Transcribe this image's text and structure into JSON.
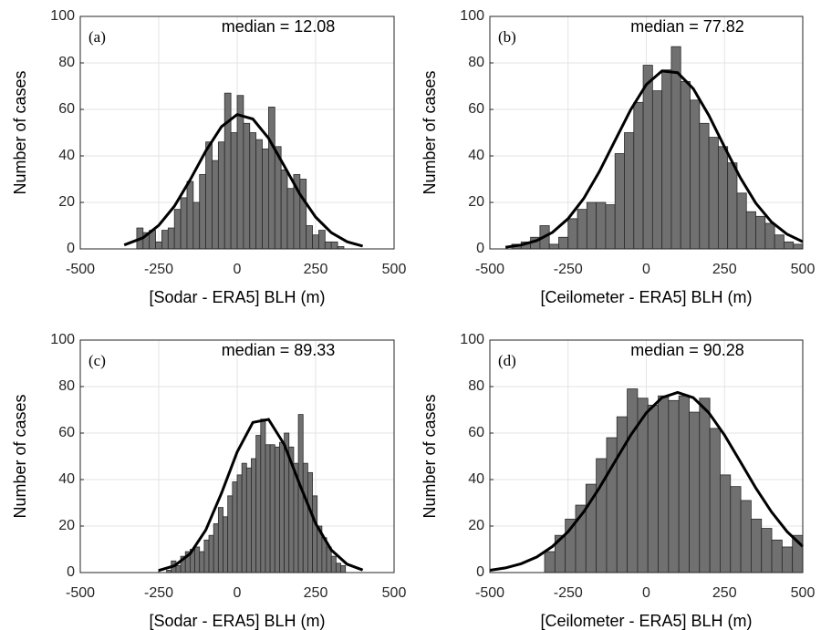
{
  "chart_data": [
    {
      "type": "histogram",
      "panel_label": "(a)",
      "annotation": "median = 12.08",
      "xlabel": "[Sodar - ERA5] BLH (m)",
      "ylabel": "Number of cases",
      "bins": [
        -320,
        -300,
        -280,
        -260,
        -240,
        -220,
        -200,
        -180,
        -160,
        -140,
        -120,
        -100,
        -80,
        -60,
        -40,
        -20,
        0,
        20,
        40,
        60,
        80,
        100,
        120,
        140,
        160,
        180,
        200,
        220,
        240,
        260,
        280,
        300,
        320,
        340
      ],
      "values": [
        9,
        7,
        8,
        3,
        8,
        9,
        17,
        22,
        29,
        20,
        32,
        46,
        38,
        46,
        67,
        50,
        66,
        54,
        50,
        47,
        43,
        61,
        44,
        34,
        26,
        32,
        30,
        10,
        6,
        8,
        3,
        3,
        1
      ],
      "color": "#707070",
      "fit": {
        "x": [
          -360,
          -300,
          -250,
          -200,
          -150,
          -100,
          -50,
          0,
          50,
          100,
          150,
          200,
          250,
          300,
          350,
          400
        ],
        "y": [
          1.7,
          4.8,
          10.1,
          18.4,
          29.7,
          42.1,
          52.6,
          57.8,
          55.9,
          47.6,
          35.7,
          23.5,
          13.7,
          7.0,
          3.1,
          1.2
        ],
        "color": "#000000"
      },
      "xlim": [
        -500,
        500
      ],
      "xticks": [
        -500,
        -250,
        0,
        250,
        500
      ],
      "ylim": [
        0,
        100
      ],
      "yticks": [
        0,
        20,
        40,
        60,
        80,
        100
      ],
      "grid": true
    },
    {
      "type": "histogram",
      "panel_label": "(b)",
      "annotation": "median = 77.82",
      "xlabel": "[Ceilometer - ERA5] BLH (m)",
      "ylabel": "Number of cases",
      "bins": [
        -430,
        -400,
        -370,
        -340,
        -310,
        -280,
        -250,
        -220,
        -190,
        -160,
        -130,
        -100,
        -70,
        -40,
        -10,
        20,
        50,
        80,
        110,
        140,
        170,
        200,
        230,
        260,
        290,
        320,
        350,
        380,
        410,
        440,
        470,
        500
      ],
      "values": [
        2,
        3,
        5,
        10,
        2,
        5,
        13,
        17,
        20,
        20,
        19,
        41,
        50,
        63,
        79,
        68,
        77,
        87,
        72,
        64,
        54,
        48,
        44,
        37,
        24,
        16,
        14,
        11,
        6,
        3,
        2
      ],
      "color": "#707070",
      "fit": {
        "x": [
          -450,
          -400,
          -350,
          -300,
          -250,
          -200,
          -150,
          -100,
          -50,
          0,
          50,
          100,
          150,
          200,
          250,
          300,
          350,
          400,
          450,
          500
        ],
        "y": [
          0.7,
          1.7,
          3.6,
          7.1,
          13.0,
          21.7,
          33.2,
          46.6,
          59.9,
          70.7,
          76.5,
          75.8,
          68.9,
          57.4,
          43.8,
          30.7,
          19.7,
          11.6,
          6.3,
          3.1
        ],
        "color": "#000000"
      },
      "xlim": [
        -500,
        500
      ],
      "xticks": [
        -500,
        -250,
        0,
        250,
        500
      ],
      "ylim": [
        0,
        100
      ],
      "yticks": [
        0,
        20,
        40,
        60,
        80,
        100
      ],
      "grid": true
    },
    {
      "type": "histogram",
      "panel_label": "(c)",
      "annotation": "median = 89.33",
      "xlabel": "[Sodar - ERA5] BLH (m)",
      "ylabel": "Number of cases",
      "bins": [
        -225,
        -210,
        -195,
        -180,
        -165,
        -150,
        -135,
        -120,
        -105,
        -90,
        -75,
        -60,
        -45,
        -30,
        -15,
        0,
        15,
        30,
        45,
        60,
        75,
        90,
        105,
        120,
        135,
        150,
        165,
        180,
        195,
        210,
        225,
        240,
        255,
        270,
        285,
        300,
        315,
        330,
        345
      ],
      "values": [
        1,
        5,
        3,
        7,
        9,
        10,
        11,
        9,
        14,
        16,
        21,
        28,
        24,
        33,
        39,
        42,
        47,
        45,
        49,
        59,
        66,
        55,
        55,
        54,
        56,
        60,
        54,
        47,
        68,
        47,
        43,
        33,
        20,
        15,
        11,
        7,
        4,
        3
      ],
      "color": "#707070",
      "fit": {
        "x": [
          -250,
          -200,
          -150,
          -100,
          -50,
          0,
          50,
          100,
          150,
          200,
          250,
          300,
          350,
          400
        ],
        "y": [
          0.9,
          2.9,
          8.1,
          18.3,
          34.1,
          51.9,
          64.6,
          65.9,
          55.1,
          37.7,
          21.1,
          9.7,
          3.6,
          1.1
        ],
        "color": "#000000"
      },
      "xlim": [
        -500,
        500
      ],
      "xticks": [
        -500,
        -250,
        0,
        250,
        500
      ],
      "ylim": [
        0,
        100
      ],
      "yticks": [
        0,
        20,
        40,
        60,
        80,
        100
      ],
      "grid": true
    },
    {
      "type": "histogram",
      "panel_label": "(d)",
      "annotation": "median = 90.28",
      "xlabel": "[Ceilometer - ERA5] BLH (m)",
      "ylabel": "Number of cases",
      "bins": [
        -325,
        -292,
        -259,
        -226,
        -193,
        -160,
        -127,
        -94,
        -61,
        -28,
        5,
        38,
        71,
        104,
        137,
        170,
        203,
        236,
        269,
        302,
        335,
        368,
        401,
        434,
        467,
        500
      ],
      "values": [
        9,
        16,
        23,
        29,
        38,
        49,
        58,
        67,
        79,
        75,
        72,
        76,
        74,
        76,
        69,
        75,
        62,
        42,
        37,
        31,
        23,
        19,
        14,
        11,
        16
      ],
      "color": "#707070",
      "fit": {
        "x": [
          -500,
          -450,
          -400,
          -350,
          -300,
          -250,
          -200,
          -150,
          -100,
          -50,
          0,
          50,
          100,
          150,
          200,
          250,
          300,
          350,
          400,
          450,
          500
        ],
        "y": [
          1.0,
          2.0,
          3.8,
          6.7,
          11.2,
          17.6,
          26.1,
          36.4,
          47.8,
          59.1,
          68.7,
          75.2,
          77.5,
          75.2,
          68.7,
          59.1,
          47.8,
          36.4,
          26.1,
          17.6,
          11.2
        ],
        "color": "#000000"
      },
      "xlim": [
        -500,
        500
      ],
      "xticks": [
        -500,
        -250,
        0,
        250,
        500
      ],
      "ylim": [
        0,
        100
      ],
      "yticks": [
        0,
        20,
        40,
        60,
        80,
        100
      ],
      "grid": true
    }
  ]
}
